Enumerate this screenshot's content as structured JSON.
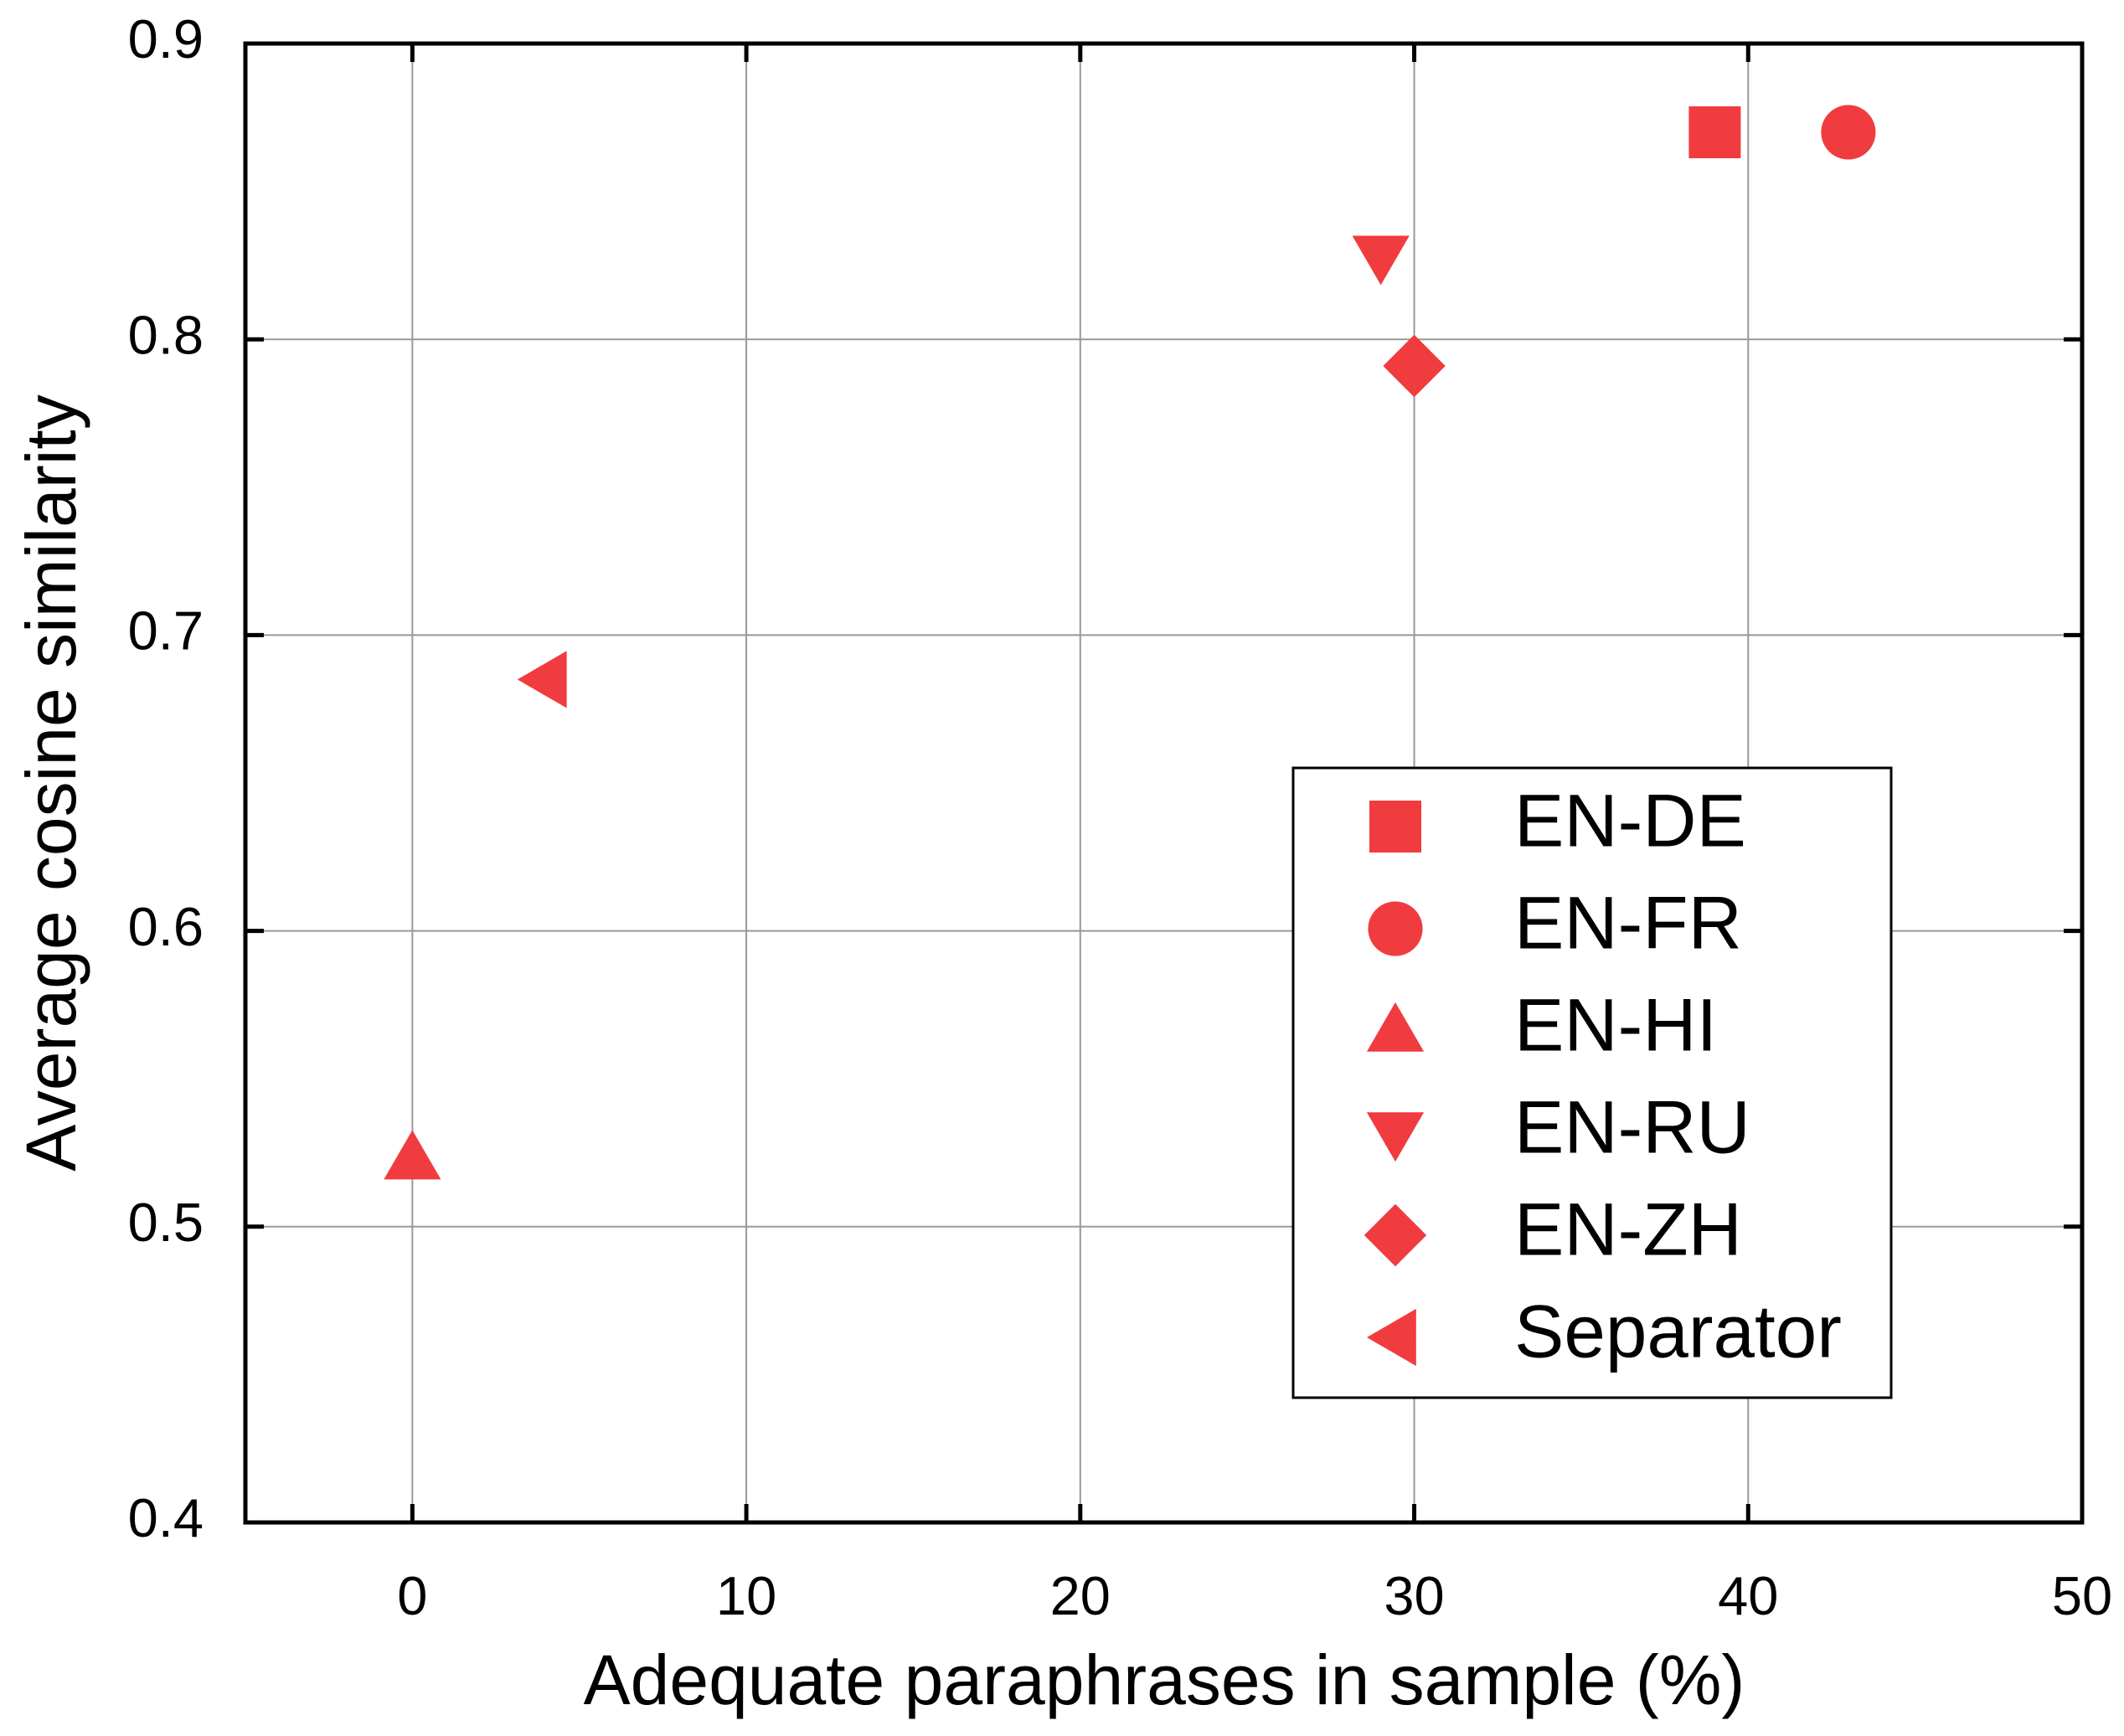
{
  "chart_data": {
    "type": "scatter",
    "x_label": "Adequate paraphrases in sample (%)",
    "y_label": "Average cosine similarity",
    "xlim": [
      -5,
      50
    ],
    "xticks": [
      0,
      10,
      20,
      30,
      40,
      50
    ],
    "ylim": [
      0.4,
      0.9
    ],
    "yticks": [
      0.4,
      0.5,
      0.6,
      0.7,
      0.8,
      0.9
    ],
    "grid": true,
    "legend": "lower right",
    "series": [
      {
        "name": "EN-DE",
        "color": "#f03c3f",
        "marker": "square",
        "x": [
          39
        ],
        "values": [
          0.87
        ]
      },
      {
        "name": "EN-FR",
        "color": "#f03c3f",
        "marker": "circle",
        "x": [
          43
        ],
        "values": [
          0.87
        ]
      },
      {
        "name": "EN-HI",
        "color": "#f03c3f",
        "marker": "triangle-up",
        "x": [
          0
        ],
        "values": [
          0.523
        ]
      },
      {
        "name": "EN-RU",
        "color": "#f03c3f",
        "marker": "triangle-down",
        "x": [
          29
        ],
        "values": [
          0.828
        ]
      },
      {
        "name": "EN-ZH",
        "color": "#f03c3f",
        "marker": "diamond",
        "x": [
          30
        ],
        "values": [
          0.791
        ]
      },
      {
        "name": "Separator",
        "color": "#f03c3f",
        "marker": "triangle-left",
        "x": [
          4
        ],
        "values": [
          0.685
        ]
      }
    ]
  }
}
